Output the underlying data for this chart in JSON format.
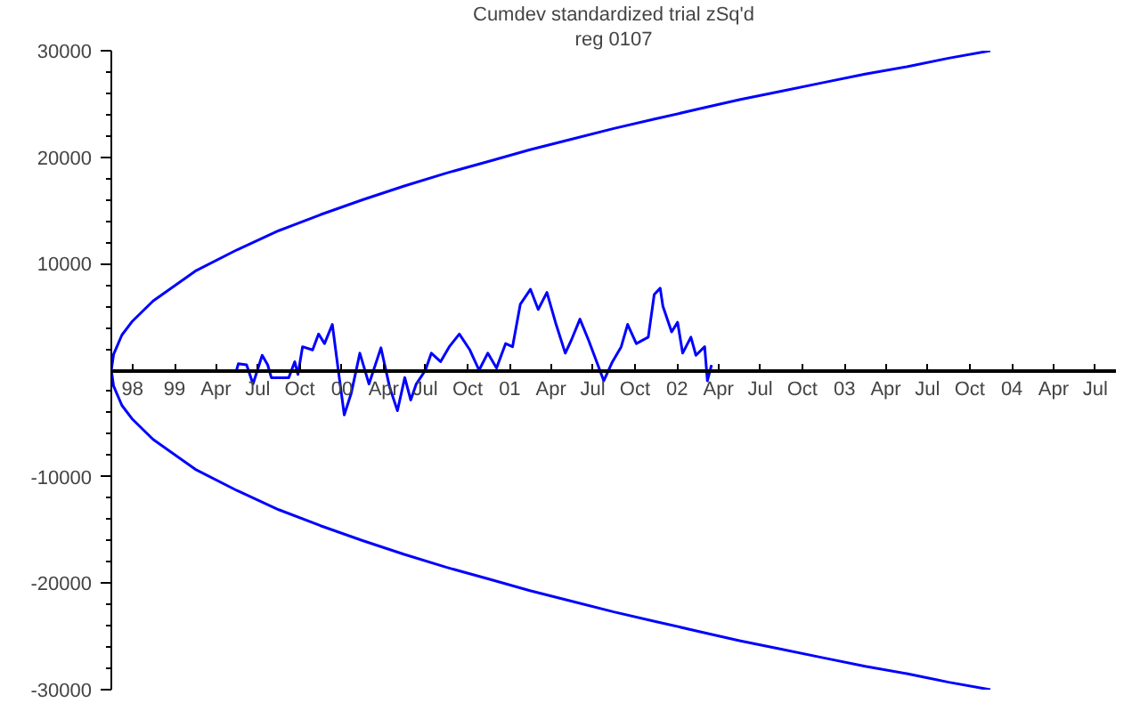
{
  "chart_data": {
    "type": "line",
    "title": "Cumdev standardized trial zSq'd",
    "subtitle": "reg 0107",
    "xlim": [
      "1998-08-16",
      "2004-08-15"
    ],
    "ylim": [
      -30000,
      30000
    ],
    "xticks": [
      {
        "value": "1998-10-01",
        "label": "98"
      },
      {
        "value": "1999-01-01",
        "label": "99"
      },
      {
        "value": "1999-04-01",
        "label": "Apr"
      },
      {
        "value": "1999-07-01",
        "label": "Jul"
      },
      {
        "value": "1999-10-01",
        "label": "Oct"
      },
      {
        "value": "2000-01-01",
        "label": "00"
      },
      {
        "value": "2000-04-01",
        "label": "Apr"
      },
      {
        "value": "2000-07-01",
        "label": "Jul"
      },
      {
        "value": "2000-10-01",
        "label": "Oct"
      },
      {
        "value": "2001-01-01",
        "label": "01"
      },
      {
        "value": "2001-04-01",
        "label": "Apr"
      },
      {
        "value": "2001-07-01",
        "label": "Jul"
      },
      {
        "value": "2001-10-01",
        "label": "Oct"
      },
      {
        "value": "2002-01-01",
        "label": "02"
      },
      {
        "value": "2002-04-01",
        "label": "Apr"
      },
      {
        "value": "2002-07-01",
        "label": "Jul"
      },
      {
        "value": "2002-10-01",
        "label": "Oct"
      },
      {
        "value": "2003-01-01",
        "label": "03"
      },
      {
        "value": "2003-04-01",
        "label": "Apr"
      },
      {
        "value": "2003-07-01",
        "label": "Jul"
      },
      {
        "value": "2003-10-01",
        "label": "Oct"
      },
      {
        "value": "2004-01-01",
        "label": "04"
      },
      {
        "value": "2004-04-01",
        "label": "Apr"
      },
      {
        "value": "2004-07-01",
        "label": "Jul"
      }
    ],
    "yticks": [
      -30000,
      {
        "value": -28000,
        "label": null
      },
      {
        "value": -26000,
        "label": null
      },
      {
        "value": -24000,
        "label": null
      },
      {
        "value": -22000,
        "label": null
      },
      -20000,
      {
        "value": -18000,
        "label": null
      },
      {
        "value": -16000,
        "label": null
      },
      {
        "value": -14000,
        "label": null
      },
      {
        "value": -12000,
        "label": null
      },
      -10000,
      {
        "value": -8000,
        "label": null
      },
      {
        "value": -6000,
        "label": null
      },
      {
        "value": -4000,
        "label": null
      },
      {
        "value": -2000,
        "label": null
      },
      {
        "value": 2000,
        "label": null
      },
      {
        "value": 4000,
        "label": null
      },
      {
        "value": 6000,
        "label": null
      },
      {
        "value": 8000,
        "label": null
      },
      10000,
      {
        "value": 12000,
        "label": null
      },
      {
        "value": 14000,
        "label": null
      },
      {
        "value": 16000,
        "label": null
      },
      {
        "value": 18000,
        "label": null
      },
      20000,
      {
        "value": 22000,
        "label": null
      },
      {
        "value": 24000,
        "label": null
      },
      {
        "value": 26000,
        "label": null
      },
      {
        "value": 28000,
        "label": null
      },
      30000
    ],
    "grid": false,
    "line_style": "solid",
    "series": [
      {
        "color": "#0000ff",
        "x": [
          "2003-11-15",
          "2003-08-16",
          "2003-05-17",
          "2003-02-15",
          "2002-11-15",
          "2002-08-16",
          "2002-05-17",
          "2002-02-14",
          "2001-11-15",
          "2001-08-16",
          "2001-05-17",
          "2001-02-14",
          "2000-11-15",
          "2000-08-15",
          "2000-05-16",
          "2000-02-15",
          "1999-11-15",
          "1999-08-16",
          "1999-05-17",
          "1999-02-15",
          "1998-11-15",
          "1998-10-01",
          "1998-09-08",
          "1998-08-21",
          "1998-08-16",
          "1998-08-21",
          "1998-09-08",
          "1998-10-01",
          "1998-11-15",
          "1999-02-15",
          "1999-05-17",
          "1999-08-16",
          "1999-11-15",
          "2000-02-15",
          "2000-05-16",
          "2000-08-15",
          "2000-11-15",
          "2001-02-14",
          "2001-05-17",
          "2001-08-16",
          "2001-11-15",
          "2002-02-14",
          "2002-05-17",
          "2002-08-16",
          "2002-11-15",
          "2003-02-15",
          "2003-05-17",
          "2003-08-16",
          "2003-11-15"
        ],
        "values": [
          -30000,
          -29300,
          -28500,
          -27800,
          -27000,
          -26200,
          -25400,
          -24500,
          -23600,
          -22700,
          -21700,
          -20700,
          -19600,
          -18500,
          -17300,
          -16000,
          -14600,
          -13100,
          -11300,
          -9300,
          -6500,
          -4600,
          -3300,
          -1500,
          0,
          1500,
          3300,
          4600,
          6500,
          9300,
          11300,
          13100,
          14600,
          16000,
          17300,
          18500,
          19600,
          20700,
          21700,
          22700,
          23600,
          24500,
          25400,
          26200,
          27000,
          27800,
          28500,
          29300,
          30000
        ]
      },
      {
        "color": "#0000ff",
        "x": [
          "1999-05-16",
          "1999-05-20",
          "1999-06-07",
          "1999-06-21",
          "1999-07-11",
          "1999-07-23",
          "1999-07-31",
          "1999-09-07",
          "1999-09-20",
          "1999-09-27",
          "1999-10-07",
          "1999-10-29",
          "1999-11-11",
          "1999-11-24",
          "1999-12-11",
          "1999-12-24",
          "2000-01-06",
          "2000-01-21",
          "2000-02-09",
          "2000-02-29",
          "2000-03-26",
          "2000-04-14",
          "2000-05-01",
          "2000-05-17",
          "2000-05-30",
          "2000-06-11",
          "2000-07-01",
          "2000-07-14",
          "2000-08-03",
          "2000-08-22",
          "2000-09-13",
          "2000-10-06",
          "2000-10-26",
          "2000-11-14",
          "2000-12-03",
          "2000-12-23",
          "2001-01-07",
          "2001-01-24",
          "2001-02-15",
          "2001-03-04",
          "2001-03-23",
          "2001-04-12",
          "2001-05-02",
          "2001-05-15",
          "2001-06-03",
          "2001-06-22",
          "2001-07-12",
          "2001-07-25",
          "2001-08-13",
          "2001-09-01",
          "2001-09-15",
          "2001-10-04",
          "2001-10-30",
          "2001-11-12",
          "2001-11-25",
          "2001-12-01",
          "2001-12-20",
          "2002-01-02",
          "2002-01-13",
          "2002-01-31",
          "2002-02-11",
          "2002-03-02",
          "2002-03-08",
          "2002-03-17"
        ],
        "values": [
          0,
          600,
          500,
          -1300,
          1400,
          500,
          -700,
          -700,
          800,
          -400,
          2200,
          1900,
          3400,
          2500,
          4300,
          0,
          -4200,
          -2200,
          1600,
          -1300,
          2100,
          -1600,
          -3800,
          -700,
          -2800,
          -1300,
          0,
          1600,
          800,
          2200,
          3400,
          1900,
          0,
          1600,
          200,
          2500,
          2200,
          6200,
          7600,
          5700,
          7300,
          4300,
          1600,
          2800,
          4800,
          2800,
          500,
          -1000,
          800,
          2200,
          4300,
          2500,
          3100,
          7100,
          7700,
          6000,
          3600,
          4500,
          1600,
          3100,
          1400,
          2200,
          -1000,
          500
        ]
      }
    ]
  }
}
